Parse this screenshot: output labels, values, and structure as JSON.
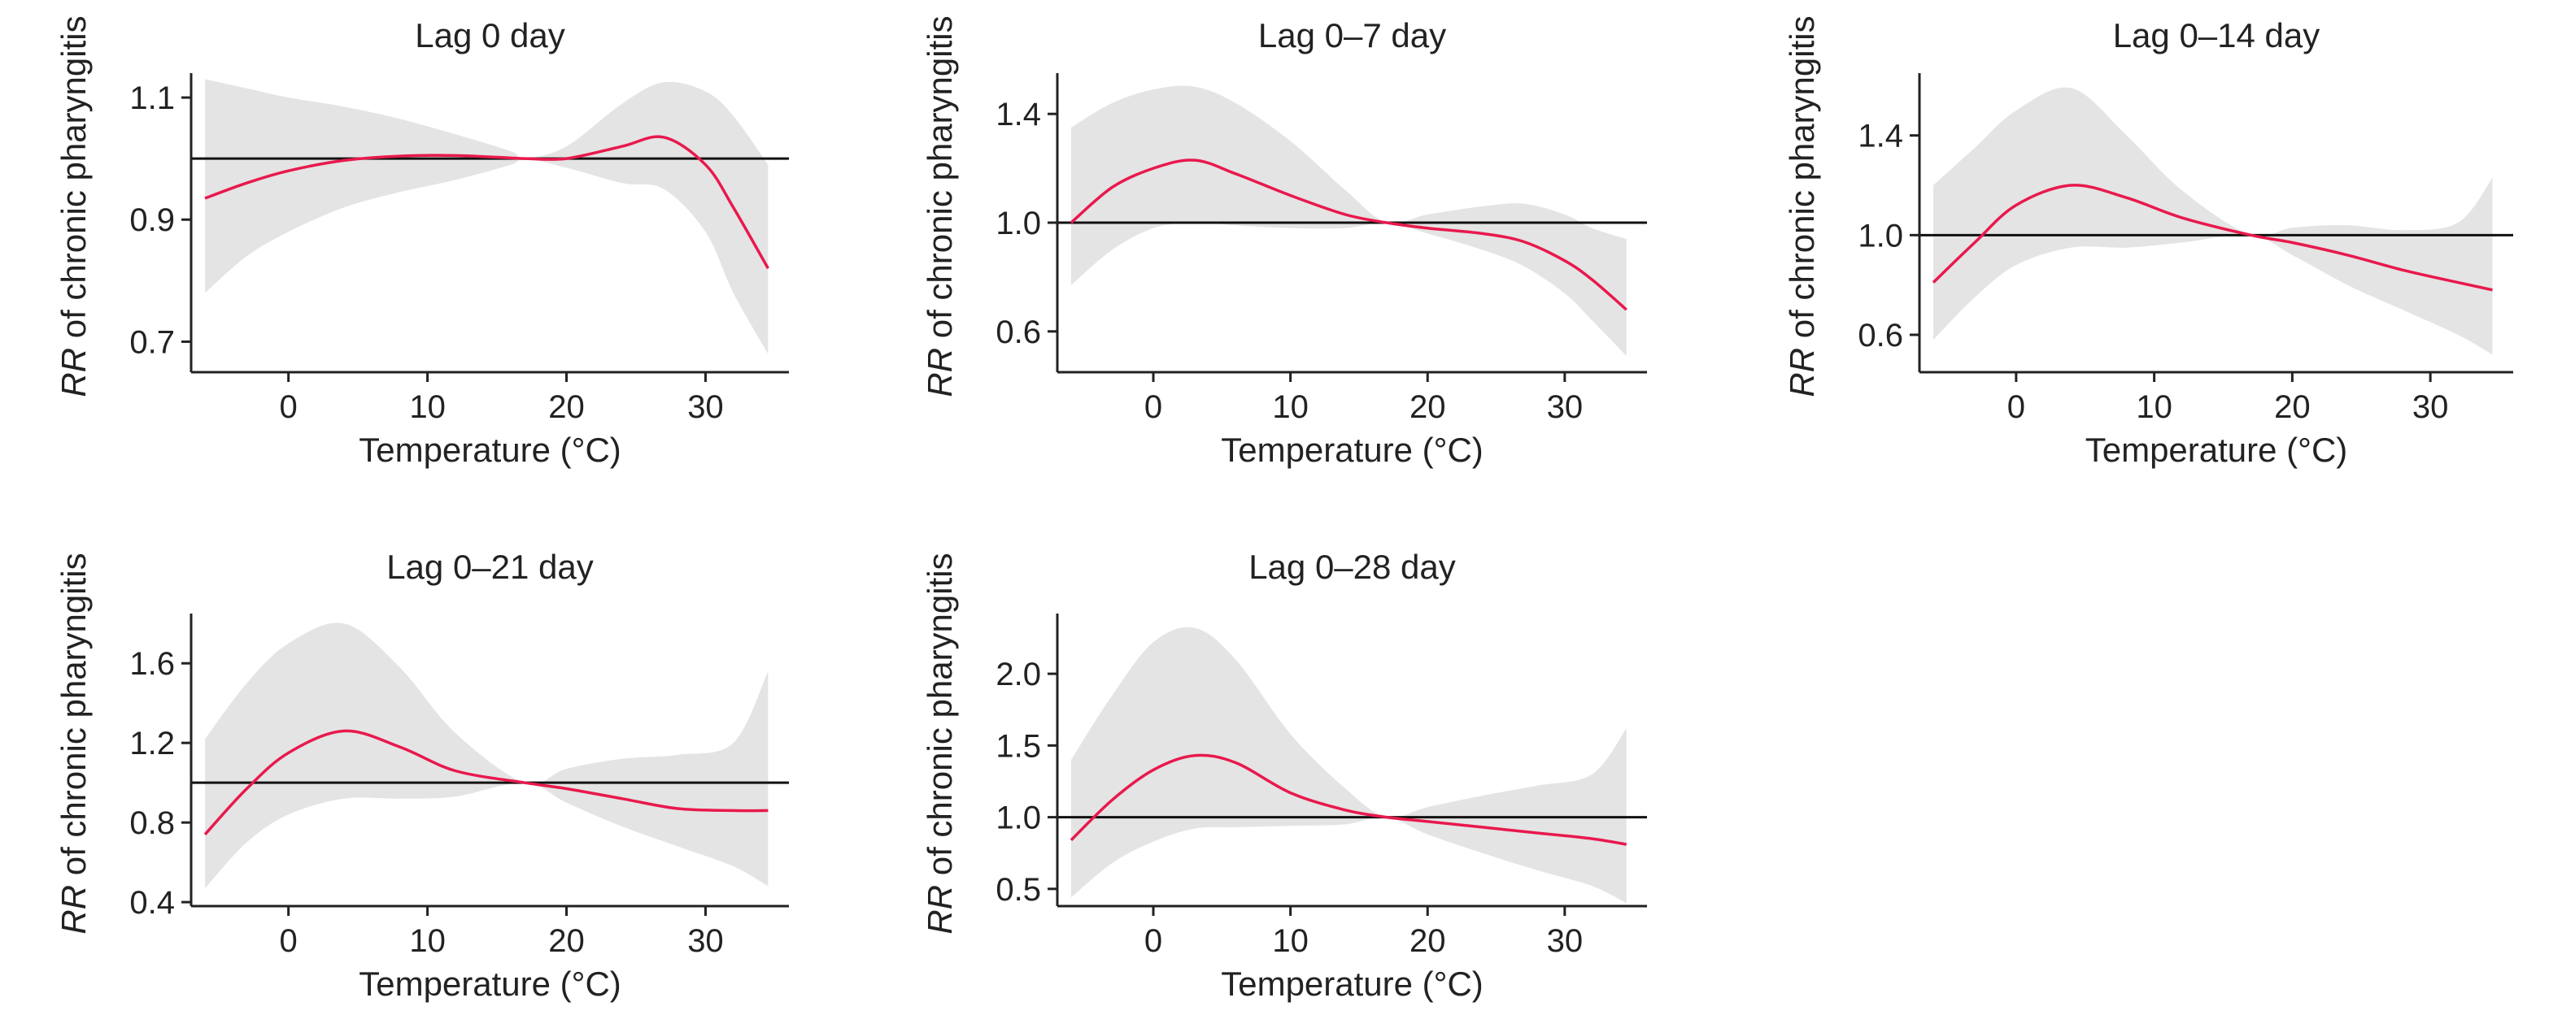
{
  "chart_data": [
    {
      "type": "line",
      "title": "Lag 0 day",
      "xlabel": "Temperature (°C)",
      "ylabel_em": "RR",
      "ylabel_rest": " of chronic pharyngitis",
      "xlim": [
        -7,
        36
      ],
      "ylim": [
        0.65,
        1.14
      ],
      "xticks": [
        0,
        10,
        20,
        30
      ],
      "yticks": [
        0.7,
        0.9,
        1.1
      ],
      "ytick_labels": [
        "0.7",
        "0.9",
        "1.1"
      ],
      "reference_y": 1.0,
      "colors": {
        "curve": "#e8194d",
        "band": "#e4e4e4",
        "ref": "#111111"
      },
      "x": [
        -6,
        -3,
        0,
        4,
        8,
        12,
        16,
        17,
        20,
        24,
        27,
        30,
        32,
        34.5
      ],
      "rr": [
        0.935,
        0.96,
        0.98,
        0.997,
        1.004,
        1.005,
        1.001,
        1.0,
        1.0,
        1.02,
        1.035,
        0.99,
        0.92,
        0.82
      ],
      "lower": [
        0.78,
        0.84,
        0.88,
        0.92,
        0.945,
        0.965,
        0.99,
        1.0,
        0.985,
        0.96,
        0.95,
        0.88,
        0.78,
        0.68
      ],
      "upper": [
        1.13,
        1.115,
        1.1,
        1.085,
        1.065,
        1.04,
        1.012,
        1.0,
        1.02,
        1.09,
        1.125,
        1.11,
        1.07,
        0.99
      ]
    },
    {
      "type": "line",
      "title": "Lag 0–7 day",
      "xlabel": "Temperature (°C)",
      "ylabel_em": "RR",
      "ylabel_rest": " of chronic pharyngitis",
      "xlim": [
        -7,
        36
      ],
      "ylim": [
        0.45,
        1.55
      ],
      "xticks": [
        0,
        10,
        20,
        30
      ],
      "yticks": [
        0.6,
        1.0,
        1.4
      ],
      "ytick_labels": [
        "0.6",
        "1.0",
        "1.4"
      ],
      "reference_y": 1.0,
      "colors": {
        "curve": "#e8194d",
        "band": "#e4e4e4",
        "ref": "#111111"
      },
      "x": [
        -6,
        -3,
        0,
        3,
        6,
        10,
        14,
        17,
        20,
        24,
        27,
        30,
        32,
        34.5
      ],
      "rr": [
        1.0,
        1.13,
        1.2,
        1.23,
        1.18,
        1.1,
        1.03,
        1.0,
        0.98,
        0.96,
        0.93,
        0.86,
        0.79,
        0.68
      ],
      "lower": [
        0.77,
        0.9,
        0.98,
        1.0,
        0.99,
        0.98,
        0.98,
        1.0,
        0.96,
        0.9,
        0.84,
        0.74,
        0.64,
        0.51
      ],
      "upper": [
        1.35,
        1.44,
        1.49,
        1.5,
        1.44,
        1.3,
        1.12,
        1.0,
        1.03,
        1.06,
        1.07,
        1.03,
        0.98,
        0.94
      ]
    },
    {
      "type": "line",
      "title": "Lag 0–14 day",
      "xlabel": "Temperature (°C)",
      "ylabel_em": "RR",
      "ylabel_rest": " of chronic pharyngitis",
      "xlim": [
        -7,
        36
      ],
      "ylim": [
        0.45,
        1.65
      ],
      "xticks": [
        0,
        10,
        20,
        30
      ],
      "yticks": [
        0.6,
        1.0,
        1.4
      ],
      "ytick_labels": [
        "0.6",
        "1.0",
        "1.4"
      ],
      "reference_y": 1.0,
      "colors": {
        "curve": "#e8194d",
        "band": "#e4e4e4",
        "ref": "#111111"
      },
      "x": [
        -6,
        -3,
        0,
        4,
        8,
        12,
        17,
        20,
        24,
        28,
        32,
        34.5
      ],
      "rr": [
        0.81,
        0.97,
        1.12,
        1.2,
        1.15,
        1.07,
        1.0,
        0.97,
        0.92,
        0.86,
        0.81,
        0.78
      ],
      "lower": [
        0.58,
        0.75,
        0.88,
        0.95,
        0.95,
        0.97,
        1.0,
        0.92,
        0.8,
        0.7,
        0.6,
        0.52
      ],
      "upper": [
        1.2,
        1.35,
        1.5,
        1.59,
        1.4,
        1.18,
        1.0,
        1.03,
        1.04,
        1.02,
        1.05,
        1.23
      ]
    },
    {
      "type": "line",
      "title": "Lag 0–21 day",
      "xlabel": "Temperature (°C)",
      "ylabel_em": "RR",
      "ylabel_rest": " of chronic pharyngitis",
      "xlim": [
        -7,
        36
      ],
      "ylim": [
        0.38,
        1.85
      ],
      "xticks": [
        0,
        10,
        20,
        30
      ],
      "yticks": [
        0.4,
        0.8,
        1.2,
        1.6
      ],
      "ytick_labels": [
        "0.4",
        "0.8",
        "1.2",
        "1.6"
      ],
      "reference_y": 1.0,
      "colors": {
        "curve": "#e8194d",
        "band": "#e4e4e4",
        "ref": "#111111"
      },
      "x": [
        -6,
        -3,
        0,
        4,
        8,
        12,
        17,
        20,
        24,
        28,
        32,
        34.5
      ],
      "rr": [
        0.74,
        0.97,
        1.15,
        1.26,
        1.18,
        1.06,
        1.0,
        0.97,
        0.92,
        0.87,
        0.86,
        0.86
      ],
      "lower": [
        0.47,
        0.7,
        0.84,
        0.92,
        0.92,
        0.93,
        1.0,
        0.9,
        0.78,
        0.68,
        0.58,
        0.48
      ],
      "upper": [
        1.22,
        1.5,
        1.7,
        1.8,
        1.58,
        1.25,
        1.0,
        1.07,
        1.12,
        1.14,
        1.2,
        1.56
      ]
    },
    {
      "type": "line",
      "title": "Lag 0–28 day",
      "xlabel": "Temperature (°C)",
      "ylabel_em": "RR",
      "ylabel_rest": " of chronic pharyngitis",
      "xlim": [
        -7,
        36
      ],
      "ylim": [
        0.38,
        2.42
      ],
      "xticks": [
        0,
        10,
        20,
        30
      ],
      "yticks": [
        0.5,
        1.0,
        1.5,
        2.0
      ],
      "ytick_labels": [
        "0.5",
        "1.0",
        "1.5",
        "2.0"
      ],
      "reference_y": 1.0,
      "colors": {
        "curve": "#e8194d",
        "band": "#e4e4e4",
        "ref": "#111111"
      },
      "x": [
        -6,
        -3,
        0,
        3,
        6,
        10,
        14,
        17,
        20,
        24,
        28,
        32,
        34.5
      ],
      "rr": [
        0.84,
        1.12,
        1.33,
        1.43,
        1.38,
        1.17,
        1.05,
        1.0,
        0.97,
        0.93,
        0.89,
        0.85,
        0.81
      ],
      "lower": [
        0.44,
        0.68,
        0.83,
        0.92,
        0.93,
        0.94,
        0.95,
        1.0,
        0.88,
        0.75,
        0.63,
        0.52,
        0.4
      ],
      "upper": [
        1.4,
        1.85,
        2.22,
        2.32,
        2.1,
        1.58,
        1.2,
        1.0,
        1.07,
        1.15,
        1.22,
        1.3,
        1.62
      ]
    }
  ]
}
